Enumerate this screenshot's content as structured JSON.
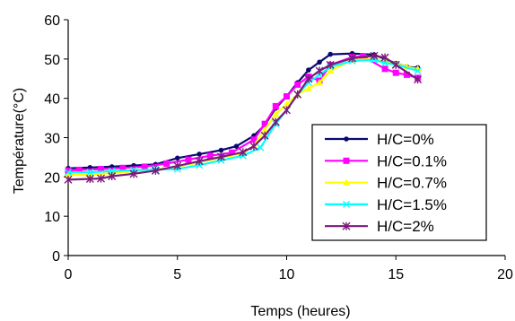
{
  "chart_data": {
    "type": "line",
    "xlabel": "Temps  (heures)",
    "ylabel": "Température(°C)",
    "xlim": [
      0,
      20
    ],
    "ylim": [
      0,
      60
    ],
    "x_ticks": [
      "0",
      "5",
      "10",
      "15",
      "20"
    ],
    "y_ticks": [
      "0",
      "10",
      "20",
      "30",
      "40",
      "50",
      "60"
    ],
    "grid": false,
    "legend_position": "right",
    "series": [
      {
        "name": "H/C=0%",
        "color": "#0a0a6e",
        "marker": "circle",
        "points": [
          [
            0,
            22.2
          ],
          [
            1,
            22.4
          ],
          [
            2,
            22.6
          ],
          [
            3,
            22.9
          ],
          [
            4,
            23.2
          ],
          [
            5,
            24.8
          ],
          [
            6,
            25.8
          ],
          [
            7,
            26.8
          ],
          [
            7.7,
            27.8
          ],
          [
            8.5,
            30.5
          ],
          [
            9,
            33.2
          ],
          [
            9.5,
            37.5
          ],
          [
            10,
            40.5
          ],
          [
            10.5,
            44
          ],
          [
            11,
            47.2
          ],
          [
            11.5,
            49.2
          ],
          [
            12,
            51.2
          ],
          [
            13,
            51.4
          ],
          [
            14,
            51.1
          ],
          [
            15,
            48.9
          ],
          [
            15.5,
            48
          ],
          [
            16,
            47.8
          ]
        ]
      },
      {
        "name": "H/C=0.1%",
        "color": "#ff00ff",
        "marker": "square",
        "points": [
          [
            0,
            21.6
          ],
          [
            0.5,
            21.8
          ],
          [
            1.5,
            22
          ],
          [
            2.5,
            22.3
          ],
          [
            3.5,
            22.6
          ],
          [
            4.5,
            23.4
          ],
          [
            5.5,
            24.4
          ],
          [
            6.5,
            25.4
          ],
          [
            7.5,
            26.2
          ],
          [
            8.5,
            29.5
          ],
          [
            9,
            33.5
          ],
          [
            9.5,
            38
          ],
          [
            10,
            40.5
          ],
          [
            10.5,
            43.5
          ],
          [
            11,
            45.5
          ],
          [
            11.5,
            44.5
          ],
          [
            12,
            48.5
          ],
          [
            13,
            50.5
          ],
          [
            13.5,
            50.7
          ],
          [
            14.5,
            47.5
          ],
          [
            15,
            46.5
          ],
          [
            15.5,
            46
          ],
          [
            16,
            45.2
          ]
        ]
      },
      {
        "name": "H/C=0.7%",
        "color": "#ffff00",
        "marker": "triangle",
        "points": [
          [
            0,
            20.5
          ],
          [
            1,
            20.5
          ],
          [
            2,
            21
          ],
          [
            3,
            21.4
          ],
          [
            4,
            21.9
          ],
          [
            5,
            22.6
          ],
          [
            6,
            23.7
          ],
          [
            7,
            24.8
          ],
          [
            8,
            26
          ],
          [
            8.5,
            28
          ],
          [
            9,
            32
          ],
          [
            9.5,
            36
          ],
          [
            10,
            38.5
          ],
          [
            10.5,
            41
          ],
          [
            11,
            42.5
          ],
          [
            11.5,
            44
          ],
          [
            12,
            47
          ],
          [
            13,
            49.8
          ],
          [
            14,
            50
          ],
          [
            14.5,
            49.5
          ],
          [
            15,
            48.8
          ],
          [
            15.5,
            48
          ],
          [
            16,
            47.5
          ]
        ]
      },
      {
        "name": "H/C=1.5%",
        "color": "#00ffff",
        "marker": "x",
        "points": [
          [
            0,
            21.2
          ],
          [
            1,
            21.2
          ],
          [
            2,
            21.5
          ],
          [
            3,
            21.7
          ],
          [
            4,
            21.9
          ],
          [
            5,
            22
          ],
          [
            6,
            23
          ],
          [
            7,
            24.2
          ],
          [
            8,
            25.4
          ],
          [
            8.8,
            27.5
          ],
          [
            9.5,
            33.5
          ],
          [
            10,
            37
          ],
          [
            10.5,
            41
          ],
          [
            11,
            44
          ],
          [
            11.5,
            46
          ],
          [
            12,
            48
          ],
          [
            13,
            49.5
          ],
          [
            14,
            49.8
          ],
          [
            14.5,
            49
          ],
          [
            15,
            48.6
          ],
          [
            16,
            47
          ]
        ]
      },
      {
        "name": "H/C=2%",
        "color": "#7b1a7b",
        "marker": "star",
        "points": [
          [
            0,
            19.3
          ],
          [
            1,
            19.5
          ],
          [
            1.5,
            19.6
          ],
          [
            2,
            20.2
          ],
          [
            3,
            20.8
          ],
          [
            4,
            21.6
          ],
          [
            5,
            22.8
          ],
          [
            6,
            24
          ],
          [
            7,
            25.1
          ],
          [
            8,
            26.3
          ],
          [
            8.5,
            27.8
          ],
          [
            9,
            30.5
          ],
          [
            9.5,
            34
          ],
          [
            10,
            37
          ],
          [
            10.5,
            41
          ],
          [
            11,
            45
          ],
          [
            11.5,
            47
          ],
          [
            12,
            48.5
          ],
          [
            13,
            50.2
          ],
          [
            14,
            50.8
          ],
          [
            14.5,
            50.4
          ],
          [
            15,
            48.5
          ],
          [
            16,
            44.8
          ]
        ]
      }
    ]
  }
}
